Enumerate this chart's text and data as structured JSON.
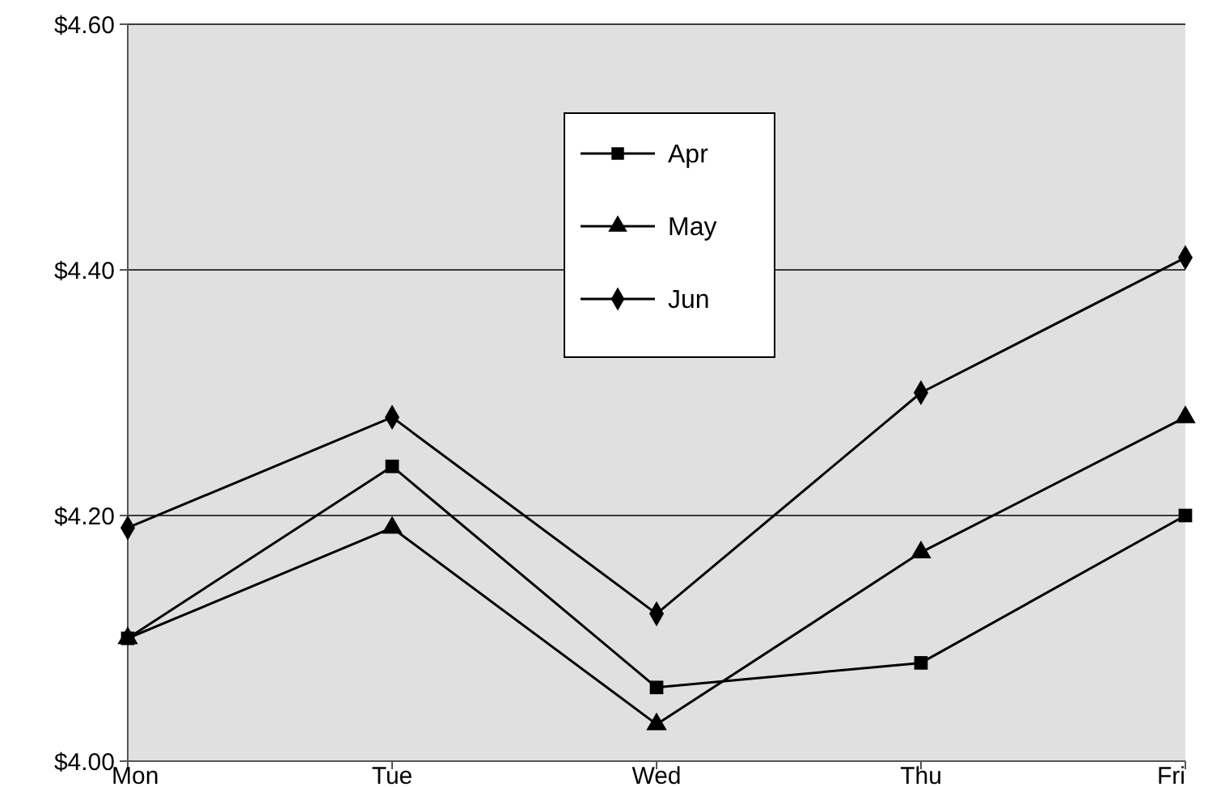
{
  "chart_data": {
    "type": "line",
    "categories": [
      "Mon",
      "Tue",
      "Wed",
      "Thu",
      "Fri"
    ],
    "series": [
      {
        "name": "Apr",
        "color": "#000000",
        "marker": "square",
        "values": [
          4.1,
          4.24,
          4.06,
          4.08,
          4.2
        ]
      },
      {
        "name": "May",
        "color": "#000000",
        "marker": "triangle",
        "values": [
          4.1,
          4.19,
          4.03,
          4.17,
          4.28
        ]
      },
      {
        "name": "Jun",
        "color": "#000000",
        "marker": "diamond",
        "values": [
          4.19,
          4.28,
          4.12,
          4.3,
          4.41
        ]
      }
    ],
    "ylim": [
      4.0,
      4.6
    ],
    "yticks": [
      {
        "value": 4.0,
        "label": "$4.00"
      },
      {
        "value": 4.2,
        "label": "$4.20"
      },
      {
        "value": 4.4,
        "label": "$4.40"
      },
      {
        "value": 4.6,
        "label": "$4.60"
      }
    ],
    "grid": "y",
    "legend": "top",
    "line_style": "solid"
  }
}
